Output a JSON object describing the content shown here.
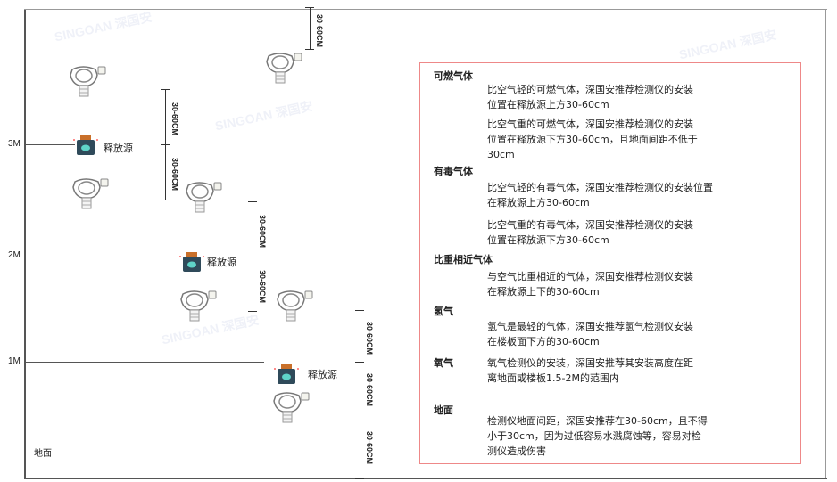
{
  "levels": [
    "3M",
    "2M",
    "1M"
  ],
  "ground_label": "地面",
  "source_label": "释放源",
  "dimension_label": "30-60CM",
  "watermark": "SINGOAN 深国安",
  "colors": {
    "frame": "#555555",
    "box_border": "#ee8888",
    "source_body": "#2f4a5a",
    "source_cap": "#c9702a",
    "source_face": "#5fd3c8"
  },
  "notes": [
    {
      "heading": "可燃气体",
      "paragraphs": [
        "比空气轻的可燃气体，深国安推荐检测仪的安装\n位置在释放源上方30-60cm",
        "比空气重的可燃气体，深国安推荐检测仪的安装\n位置在释放源下方30-60cm，且地面间距不低于\n30cm"
      ]
    },
    {
      "heading": "有毒气体",
      "paragraphs": [
        "比空气轻的有毒气体，深国安推荐检测仪的安装位置\n在释放源上方30-60cm",
        "比空气重的有毒气体，深国安推荐检测仪的安装\n位置在释放源下方30-60cm"
      ]
    },
    {
      "heading": "比重相近气体",
      "paragraphs": [
        "与空气比重相近的气体，深国安推荐检测仪安装\n在释放源上下的30-60cm"
      ]
    },
    {
      "heading": "氢气",
      "paragraphs": [
        "氢气是最轻的气体，深国安推荐氢气检测仪安装\n在楼板面下方的30-60cm"
      ]
    },
    {
      "heading": "氧气",
      "paragraphs": [
        "氧气检测仪的安装，深国安推荐其安装高度在距\n离地面或楼板1.5-2M的范围内"
      ]
    },
    {
      "heading": "地面",
      "paragraphs": [
        "检测仪地面间距，深国安推荐在30-60cm，且不得\n小于30cm，因为过低容易水溅腐蚀等，容易对检\n测仪造成伤害"
      ]
    }
  ]
}
